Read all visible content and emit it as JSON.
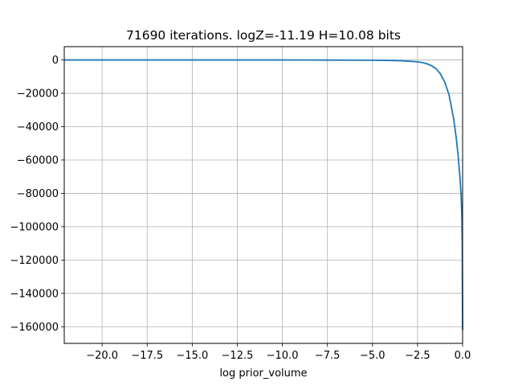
{
  "chart_data": {
    "type": "line",
    "title": "71690 iterations. logZ=-11.19 H=10.08 bits",
    "xlabel": "log prior_volume",
    "ylabel": "",
    "xlim": [
      -22.1,
      0.0
    ],
    "ylim": [
      -170000,
      8000
    ],
    "grid": true,
    "line_color": "#1f77b4",
    "x_ticks": [
      -20.0,
      -17.5,
      -15.0,
      -12.5,
      -10.0,
      -7.5,
      -5.0,
      -2.5,
      0.0
    ],
    "x_tick_labels": [
      "−20.0",
      "−17.5",
      "−15.0",
      "−12.5",
      "−10.0",
      "−7.5",
      "−5.0",
      "−2.5",
      "0.0"
    ],
    "y_ticks": [
      0,
      -20000,
      -40000,
      -60000,
      -80000,
      -100000,
      -120000,
      -140000,
      -160000
    ],
    "y_tick_labels": [
      "0",
      "−20000",
      "−40000",
      "−60000",
      "−80000",
      "−100000",
      "−120000",
      "−140000",
      "−160000"
    ],
    "series": [
      {
        "x": [
          -22.1,
          -20.0,
          -17.5,
          -15.0,
          -12.5,
          -10.0,
          -7.5,
          -5.0,
          -4.0,
          -3.5,
          -3.0,
          -2.5,
          -2.25,
          -2.0,
          -1.75,
          -1.5,
          -1.25,
          -1.0,
          -0.75,
          -0.5,
          -0.35,
          -0.25,
          -0.15,
          -0.08,
          -0.04,
          -0.02,
          -0.01,
          0.0
        ],
        "y": [
          0,
          0,
          0,
          0,
          0,
          0,
          -50,
          -150,
          -300,
          -450,
          -700,
          -1100,
          -1500,
          -2200,
          -3300,
          -5000,
          -8000,
          -13000,
          -21000,
          -35000,
          -47000,
          -57000,
          -70000,
          -82000,
          -95000,
          -110000,
          -135000,
          -162000
        ]
      }
    ]
  }
}
